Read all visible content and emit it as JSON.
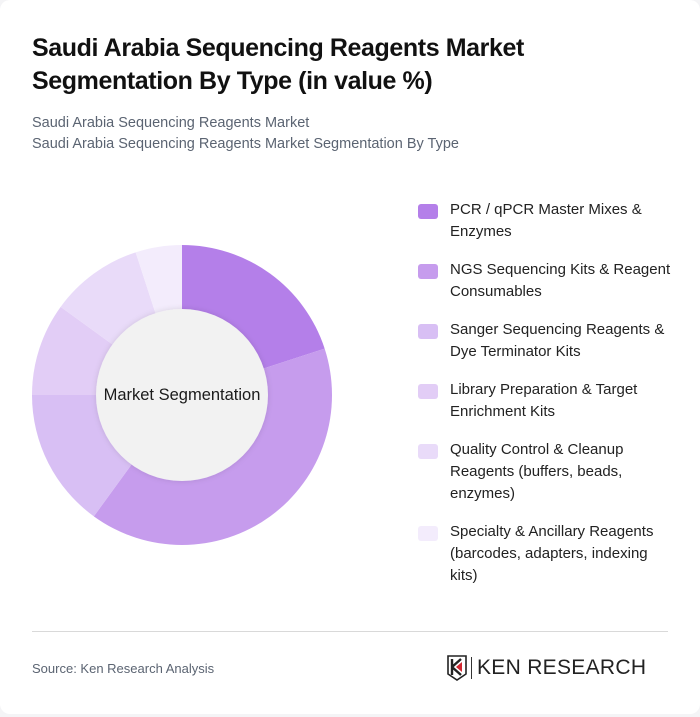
{
  "header": {
    "title": "Saudi Arabia Sequencing Reagents Market Segmentation By Type (in value %)",
    "subtitle_line1": "Saudi Arabia Sequencing Reagents Market",
    "subtitle_line2": "Saudi Arabia Sequencing Reagents Market Segmentation By Type"
  },
  "chart_data": {
    "type": "pie",
    "variant": "donut",
    "title": "Saudi Arabia Sequencing Reagents Market Segmentation By Type (in value %)",
    "center_label": "Market Segmentation",
    "categories": [
      "PCR / qPCR Master Mixes & Enzymes",
      "NGS Sequencing Kits & Reagent Consumables",
      "Sanger Sequencing Reagents & Dye Terminator Kits",
      "Library Preparation & Target Enrichment Kits",
      "Quality Control & Cleanup Reagents (buffers, beads, enzymes)",
      "Specialty & Ancillary Reagents (barcodes, adapters, indexing kits)"
    ],
    "values": [
      20,
      40,
      15,
      10,
      10,
      5
    ],
    "colors": [
      "#b47fe9",
      "#c69ced",
      "#d8bff4",
      "#e2cdf6",
      "#e9dbf9",
      "#f3ecfc"
    ],
    "legend_position": "right",
    "start_angle": "12 o'clock, clockwise"
  },
  "legend": {
    "items": [
      {
        "label": "PCR / qPCR Master Mixes & Enzymes",
        "color": "#b47fe9"
      },
      {
        "label": "NGS Sequencing Kits & Reagent Consumables",
        "color": "#c69ced"
      },
      {
        "label": "Sanger Sequencing Reagents & Dye Terminator Kits",
        "color": "#d8bff4"
      },
      {
        "label": "Library Preparation & Target Enrichment Kits",
        "color": "#e2cdf6"
      },
      {
        "label": "Quality Control & Cleanup Reagents (buffers, beads, enzymes)",
        "color": "#e9dbf9"
      },
      {
        "label": "Specialty & Ancillary Reagents (barcodes, adapters, indexing kits)",
        "color": "#f3ecfc"
      }
    ]
  },
  "footer": {
    "source": "Source: Ken Research Analysis",
    "logo_text": "KEN RESEARCH"
  }
}
